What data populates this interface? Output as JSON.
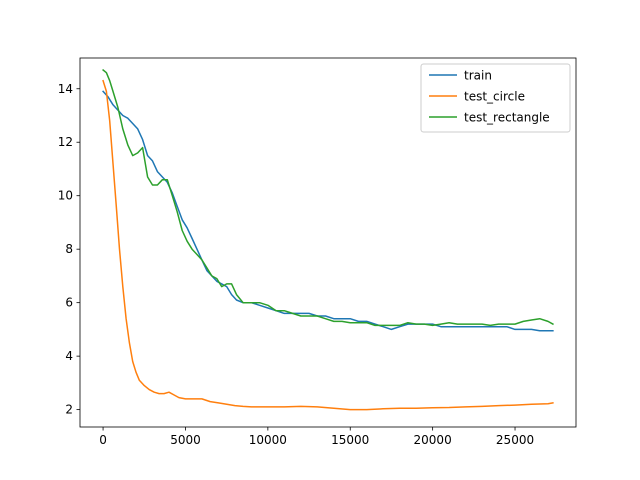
{
  "chart_data": {
    "type": "line",
    "title": "",
    "xlabel": "",
    "ylabel": "",
    "xlim": [
      -1400,
      28700
    ],
    "ylim": [
      1.35,
      15.15
    ],
    "xticks": [
      0,
      5000,
      10000,
      15000,
      20000,
      25000
    ],
    "xtick_labels": [
      "0",
      "5000",
      "10000",
      "15000",
      "20000",
      "25000"
    ],
    "yticks": [
      2,
      4,
      6,
      8,
      10,
      12,
      14
    ],
    "ytick_labels": [
      "2",
      "4",
      "6",
      "8",
      "10",
      "12",
      "14"
    ],
    "grid": false,
    "legend_position": "top-right",
    "series": [
      {
        "name": "train",
        "color": "#1f77b4",
        "points": [
          [
            0,
            13.9
          ],
          [
            300,
            13.7
          ],
          [
            600,
            13.4
          ],
          [
            900,
            13.2
          ],
          [
            1200,
            13.0
          ],
          [
            1500,
            12.9
          ],
          [
            1800,
            12.7
          ],
          [
            2100,
            12.5
          ],
          [
            2400,
            12.1
          ],
          [
            2700,
            11.5
          ],
          [
            3000,
            11.3
          ],
          [
            3300,
            10.9
          ],
          [
            3600,
            10.7
          ],
          [
            3900,
            10.5
          ],
          [
            4200,
            10.1
          ],
          [
            4500,
            9.6
          ],
          [
            4800,
            9.1
          ],
          [
            5100,
            8.8
          ],
          [
            5400,
            8.4
          ],
          [
            5700,
            8.0
          ],
          [
            6000,
            7.6
          ],
          [
            6300,
            7.2
          ],
          [
            6600,
            7.0
          ],
          [
            6900,
            6.8
          ],
          [
            7200,
            6.7
          ],
          [
            7500,
            6.6
          ],
          [
            7800,
            6.3
          ],
          [
            8100,
            6.1
          ],
          [
            8500,
            6.0
          ],
          [
            9000,
            6.0
          ],
          [
            9500,
            5.9
          ],
          [
            10000,
            5.8
          ],
          [
            10500,
            5.7
          ],
          [
            11000,
            5.6
          ],
          [
            11500,
            5.6
          ],
          [
            12000,
            5.6
          ],
          [
            12500,
            5.6
          ],
          [
            13000,
            5.5
          ],
          [
            13500,
            5.5
          ],
          [
            14000,
            5.4
          ],
          [
            14500,
            5.4
          ],
          [
            15000,
            5.4
          ],
          [
            15500,
            5.3
          ],
          [
            16000,
            5.3
          ],
          [
            16500,
            5.2
          ],
          [
            17000,
            5.1
          ],
          [
            17500,
            5.0
          ],
          [
            18000,
            5.1
          ],
          [
            18500,
            5.2
          ],
          [
            19000,
            5.2
          ],
          [
            19500,
            5.2
          ],
          [
            20000,
            5.2
          ],
          [
            20500,
            5.1
          ],
          [
            21000,
            5.1
          ],
          [
            21500,
            5.1
          ],
          [
            22000,
            5.1
          ],
          [
            22500,
            5.1
          ],
          [
            23000,
            5.1
          ],
          [
            23500,
            5.1
          ],
          [
            24000,
            5.1
          ],
          [
            24500,
            5.1
          ],
          [
            25000,
            5.0
          ],
          [
            25500,
            5.0
          ],
          [
            26000,
            5.0
          ],
          [
            26500,
            4.95
          ],
          [
            27000,
            4.95
          ],
          [
            27300,
            4.95
          ]
        ]
      },
      {
        "name": "test_circle",
        "color": "#ff7f0e",
        "points": [
          [
            0,
            14.3
          ],
          [
            200,
            13.9
          ],
          [
            400,
            12.8
          ],
          [
            600,
            11.2
          ],
          [
            800,
            9.6
          ],
          [
            1000,
            8.0
          ],
          [
            1200,
            6.6
          ],
          [
            1400,
            5.4
          ],
          [
            1600,
            4.5
          ],
          [
            1800,
            3.8
          ],
          [
            2000,
            3.4
          ],
          [
            2200,
            3.1
          ],
          [
            2500,
            2.9
          ],
          [
            2800,
            2.75
          ],
          [
            3100,
            2.65
          ],
          [
            3400,
            2.6
          ],
          [
            3700,
            2.6
          ],
          [
            4000,
            2.65
          ],
          [
            4300,
            2.55
          ],
          [
            4600,
            2.45
          ],
          [
            5000,
            2.4
          ],
          [
            5500,
            2.4
          ],
          [
            6000,
            2.4
          ],
          [
            6500,
            2.3
          ],
          [
            7000,
            2.25
          ],
          [
            7500,
            2.2
          ],
          [
            8000,
            2.15
          ],
          [
            8500,
            2.12
          ],
          [
            9000,
            2.1
          ],
          [
            10000,
            2.1
          ],
          [
            11000,
            2.1
          ],
          [
            12000,
            2.12
          ],
          [
            13000,
            2.1
          ],
          [
            14000,
            2.05
          ],
          [
            15000,
            2.0
          ],
          [
            16000,
            2.0
          ],
          [
            17000,
            2.03
          ],
          [
            18000,
            2.05
          ],
          [
            19000,
            2.05
          ],
          [
            20000,
            2.07
          ],
          [
            21000,
            2.08
          ],
          [
            22000,
            2.1
          ],
          [
            23000,
            2.12
          ],
          [
            24000,
            2.15
          ],
          [
            25000,
            2.17
          ],
          [
            26000,
            2.2
          ],
          [
            27000,
            2.22
          ],
          [
            27300,
            2.25
          ]
        ]
      },
      {
        "name": "test_rectangle",
        "color": "#2ca02c",
        "points": [
          [
            0,
            14.7
          ],
          [
            200,
            14.6
          ],
          [
            400,
            14.3
          ],
          [
            600,
            13.9
          ],
          [
            900,
            13.3
          ],
          [
            1200,
            12.5
          ],
          [
            1500,
            11.9
          ],
          [
            1800,
            11.5
          ],
          [
            2100,
            11.6
          ],
          [
            2400,
            11.8
          ],
          [
            2700,
            10.7
          ],
          [
            3000,
            10.4
          ],
          [
            3300,
            10.4
          ],
          [
            3600,
            10.6
          ],
          [
            3900,
            10.6
          ],
          [
            4200,
            10.0
          ],
          [
            4500,
            9.4
          ],
          [
            4800,
            8.7
          ],
          [
            5100,
            8.3
          ],
          [
            5400,
            8.0
          ],
          [
            5700,
            7.8
          ],
          [
            6000,
            7.6
          ],
          [
            6300,
            7.3
          ],
          [
            6600,
            7.0
          ],
          [
            6900,
            6.9
          ],
          [
            7200,
            6.6
          ],
          [
            7500,
            6.7
          ],
          [
            7800,
            6.7
          ],
          [
            8100,
            6.3
          ],
          [
            8500,
            6.0
          ],
          [
            9000,
            6.0
          ],
          [
            9500,
            6.0
          ],
          [
            10000,
            5.9
          ],
          [
            10500,
            5.7
          ],
          [
            11000,
            5.7
          ],
          [
            11500,
            5.6
          ],
          [
            12000,
            5.5
          ],
          [
            12500,
            5.5
          ],
          [
            13000,
            5.5
          ],
          [
            13500,
            5.4
          ],
          [
            14000,
            5.3
          ],
          [
            14500,
            5.3
          ],
          [
            15000,
            5.25
          ],
          [
            15500,
            5.25
          ],
          [
            16000,
            5.25
          ],
          [
            16500,
            5.15
          ],
          [
            17000,
            5.15
          ],
          [
            17500,
            5.15
          ],
          [
            18000,
            5.15
          ],
          [
            18500,
            5.25
          ],
          [
            19000,
            5.2
          ],
          [
            19500,
            5.2
          ],
          [
            20000,
            5.15
          ],
          [
            20500,
            5.2
          ],
          [
            21000,
            5.25
          ],
          [
            21500,
            5.2
          ],
          [
            22000,
            5.2
          ],
          [
            22500,
            5.2
          ],
          [
            23000,
            5.2
          ],
          [
            23500,
            5.15
          ],
          [
            24000,
            5.2
          ],
          [
            24500,
            5.2
          ],
          [
            25000,
            5.2
          ],
          [
            25500,
            5.3
          ],
          [
            26000,
            5.35
          ],
          [
            26500,
            5.4
          ],
          [
            27000,
            5.3
          ],
          [
            27300,
            5.2
          ]
        ]
      }
    ]
  }
}
